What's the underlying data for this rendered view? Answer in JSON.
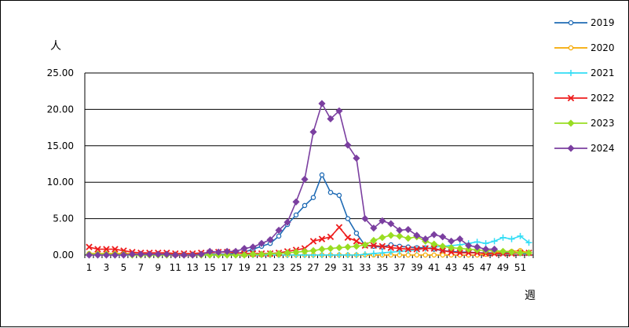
{
  "chart_data": {
    "type": "line",
    "ylabel": "人",
    "xlabel": "週",
    "ylim": [
      0,
      25
    ],
    "y_ticks": [
      "0.00",
      "5.00",
      "10.00",
      "15.00",
      "20.00",
      "25.00"
    ],
    "x_tick_labels": [
      "1",
      "3",
      "5",
      "7",
      "9",
      "11",
      "13",
      "15",
      "17",
      "19",
      "21",
      "23",
      "25",
      "27",
      "29",
      "31",
      "33",
      "35",
      "37",
      "39",
      "41",
      "43",
      "45",
      "47",
      "49",
      "51"
    ],
    "grid": "horizontal",
    "legend_position": "right",
    "x": [
      1,
      2,
      3,
      4,
      5,
      6,
      7,
      8,
      9,
      10,
      11,
      12,
      13,
      14,
      15,
      16,
      17,
      18,
      19,
      20,
      21,
      22,
      23,
      24,
      25,
      26,
      27,
      28,
      29,
      30,
      31,
      32,
      33,
      34,
      35,
      36,
      37,
      38,
      39,
      40,
      41,
      42,
      43,
      44,
      45,
      46,
      47,
      48,
      49,
      50,
      51,
      52
    ],
    "series": [
      {
        "name": "2019",
        "color": "#1f6bb5",
        "marker": "circle",
        "values": [
          0.1,
          0.1,
          0.1,
          0.1,
          0.1,
          0.1,
          0.1,
          0.1,
          0.1,
          0.1,
          0.1,
          0.1,
          0.1,
          0.1,
          0.1,
          0.1,
          0.1,
          0.2,
          0.4,
          0.8,
          1.2,
          1.6,
          2.6,
          4.2,
          5.5,
          6.8,
          7.9,
          11.0,
          8.6,
          8.2,
          5.0,
          3.0,
          1.3,
          1.2,
          1.1,
          1.4,
          1.2,
          1.1,
          1.0,
          1.0,
          0.8,
          0.6,
          0.5,
          0.4,
          0.4,
          0.3,
          0.3,
          0.3,
          0.3,
          0.3,
          0.2,
          0.2
        ]
      },
      {
        "name": "2020",
        "color": "#f5a800",
        "marker": "circle",
        "values": [
          0.2,
          0.2,
          0.2,
          0.2,
          0.2,
          0.2,
          0.1,
          0.1,
          0.1,
          0.1,
          0.1,
          0.1,
          0.1,
          0.1,
          0.0,
          0.0,
          0.0,
          0.0,
          0.0,
          0.0,
          0.0,
          0.0,
          0.0,
          0.0,
          0.0,
          0.0,
          0.0,
          0.0,
          0.0,
          0.0,
          0.0,
          0.0,
          0.0,
          0.0,
          0.0,
          0.0,
          0.0,
          0.0,
          0.0,
          0.0,
          0.0,
          0.0,
          0.0,
          0.0,
          0.0,
          0.0,
          0.1,
          0.3,
          0.5,
          0.5,
          0.6,
          0.3
        ]
      },
      {
        "name": "2021",
        "color": "#33ddf5",
        "marker": "plus",
        "values": [
          0.1,
          0.1,
          0.1,
          0.0,
          0.0,
          0.0,
          0.0,
          0.0,
          0.0,
          0.0,
          0.0,
          0.0,
          0.0,
          0.0,
          0.0,
          0.0,
          0.0,
          0.0,
          0.0,
          0.0,
          0.0,
          0.0,
          0.0,
          0.0,
          0.0,
          0.0,
          0.0,
          0.0,
          0.0,
          0.0,
          0.0,
          0.0,
          0.1,
          0.2,
          0.3,
          0.4,
          0.5,
          0.6,
          0.7,
          0.9,
          1.1,
          1.2,
          1.3,
          1.4,
          1.6,
          1.8,
          1.6,
          1.9,
          2.4,
          2.2,
          2.6,
          1.7
        ]
      },
      {
        "name": "2022",
        "color": "#ee1c1c",
        "marker": "cross",
        "values": [
          1.1,
          0.8,
          0.8,
          0.8,
          0.6,
          0.4,
          0.3,
          0.3,
          0.3,
          0.3,
          0.2,
          0.2,
          0.2,
          0.3,
          0.3,
          0.4,
          0.4,
          0.3,
          0.2,
          0.2,
          0.2,
          0.2,
          0.3,
          0.5,
          0.7,
          0.9,
          1.9,
          2.2,
          2.5,
          3.8,
          2.4,
          1.9,
          1.3,
          1.3,
          1.2,
          1.0,
          0.9,
          0.8,
          0.8,
          0.9,
          0.9,
          0.6,
          0.4,
          0.3,
          0.3,
          0.3,
          0.2,
          0.2,
          0.2,
          0.2,
          0.3,
          0.3
        ]
      },
      {
        "name": "2023",
        "color": "#99dd22",
        "marker": "diamond",
        "values": [
          0.1,
          0.1,
          0.1,
          0.1,
          0.1,
          0.0,
          0.0,
          0.0,
          0.0,
          0.0,
          0.0,
          0.0,
          0.0,
          0.0,
          0.0,
          0.0,
          0.0,
          0.0,
          0.0,
          0.1,
          0.1,
          0.2,
          0.2,
          0.3,
          0.4,
          0.5,
          0.6,
          0.8,
          0.9,
          1.0,
          1.1,
          1.2,
          1.4,
          2.0,
          2.4,
          2.7,
          2.6,
          2.3,
          2.5,
          1.9,
          1.5,
          1.2,
          1.0,
          0.9,
          0.8,
          0.7,
          0.6,
          0.6,
          0.5,
          0.4,
          0.3,
          0.3
        ]
      },
      {
        "name": "2024",
        "color": "#7b3fa0",
        "marker": "diamond",
        "values": [
          0.0,
          0.0,
          0.0,
          0.0,
          0.0,
          0.1,
          0.1,
          0.1,
          0.1,
          0.1,
          0.0,
          0.0,
          0.0,
          0.1,
          0.5,
          0.4,
          0.5,
          0.5,
          0.9,
          1.1,
          1.6,
          2.1,
          3.4,
          4.5,
          7.3,
          10.4,
          16.9,
          20.8,
          18.7,
          19.8,
          15.1,
          13.3,
          5.0,
          3.7,
          4.7,
          4.3,
          3.4,
          3.5,
          2.7,
          2.2,
          2.8,
          2.5,
          1.9,
          2.2,
          1.3,
          1.1,
          0.8,
          0.8,
          null,
          null,
          null,
          null
        ]
      }
    ]
  }
}
